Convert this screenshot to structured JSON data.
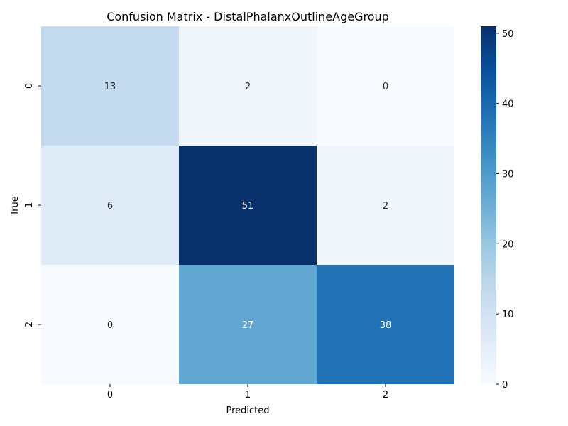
{
  "chart_data": {
    "type": "heatmap",
    "title": "Confusion Matrix - DistalPhalanxOutlineAgeGroup",
    "xlabel": "Predicted",
    "ylabel": "True",
    "x_categories": [
      "0",
      "1",
      "2"
    ],
    "y_categories": [
      "0",
      "1",
      "2"
    ],
    "matrix": [
      [
        13,
        2,
        0
      ],
      [
        6,
        51,
        2
      ],
      [
        0,
        27,
        38
      ]
    ],
    "colormap": "Blues",
    "colorbar": {
      "range": [
        0,
        51
      ],
      "ticks": [
        "0",
        "10",
        "20",
        "30",
        "40",
        "50"
      ],
      "tick_values": [
        0,
        10,
        20,
        30,
        40,
        50
      ]
    },
    "grid": false,
    "legend": "colorbar-right"
  }
}
